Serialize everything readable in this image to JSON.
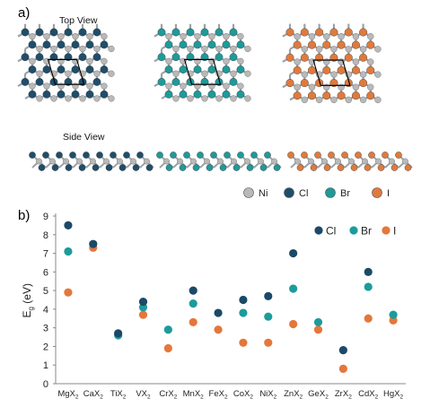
{
  "panels": {
    "a": "a)",
    "b": "b)"
  },
  "views": {
    "top": "Top View",
    "side": "Side View"
  },
  "atom_legend": [
    {
      "label": "Ni",
      "color": "#b9b9b9"
    },
    {
      "label": "Cl",
      "color": "#1f4e6b"
    },
    {
      "label": "Br",
      "color": "#1e9a9a"
    },
    {
      "label": "I",
      "color": "#e07a3c"
    }
  ],
  "chart_data": {
    "type": "scatter",
    "title": "",
    "xlabel": "",
    "ylabel": "E_g (eV)",
    "ylabel_main": "E",
    "ylabel_sub": "g",
    "ylabel_rest": " (eV)",
    "ylim": [
      0,
      9
    ],
    "yticks": [
      "0",
      "1",
      "2",
      "3",
      "4",
      "5",
      "6",
      "7",
      "8",
      "9"
    ],
    "categories": [
      "MgX",
      "CaX",
      "TiX",
      "VX",
      "CrX",
      "MnX",
      "FeX",
      "CoX",
      "NiX",
      "ZnX",
      "GeX",
      "ZrX",
      "CdX",
      "HgX"
    ],
    "category_subscript": "2",
    "grid": false,
    "legend_position": "top-right",
    "series": [
      {
        "name": "Cl",
        "color": "#1b4968",
        "values": [
          8.5,
          7.5,
          2.7,
          4.4,
          null,
          5.0,
          3.8,
          4.5,
          4.7,
          7.0,
          null,
          1.8,
          6.0,
          null
        ]
      },
      {
        "name": "Br",
        "color": "#1d9b9b",
        "values": [
          7.1,
          null,
          2.6,
          4.1,
          2.9,
          4.3,
          null,
          3.8,
          3.6,
          5.1,
          3.3,
          null,
          5.2,
          3.7
        ]
      },
      {
        "name": "I",
        "color": "#e4773b",
        "values": [
          4.9,
          7.3,
          null,
          3.7,
          1.9,
          3.3,
          2.9,
          2.2,
          2.2,
          3.2,
          2.9,
          0.8,
          3.5,
          3.4
        ]
      }
    ]
  }
}
